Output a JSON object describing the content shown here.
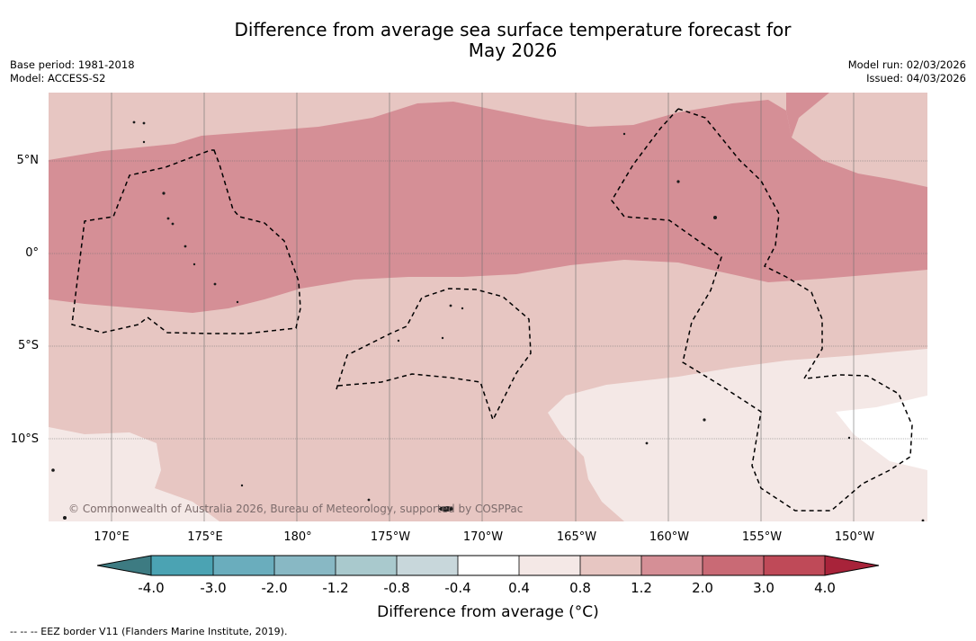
{
  "title": {
    "line1": "Difference from average sea surface temperature forecast for",
    "line2": "May 2026"
  },
  "meta_left": {
    "base_period": "Base period: 1981-2018",
    "model": "Model: ACCESS-S2"
  },
  "meta_right": {
    "model_run": "Model run: 02/03/2026",
    "issued": "Issued: 04/03/2026"
  },
  "axes": {
    "lat_labels": [
      "5°N",
      "0°",
      "5°S",
      "10°S"
    ],
    "lon_labels": [
      "170°E",
      "175°E",
      "180°",
      "175°W",
      "170°W",
      "165°W",
      "160°W",
      "155°W",
      "150°W"
    ]
  },
  "copyright": "© Commonwealth of Australia 2026, Bureau of Meteorology, supported by COSPPac",
  "colorbar": {
    "ticks": [
      "-4.0",
      "-3.0",
      "-2.0",
      "-1.2",
      "-0.8",
      "-0.4",
      "0.4",
      "0.8",
      "1.2",
      "2.0",
      "3.0",
      "4.0"
    ],
    "colors": {
      "below_min": "#3d7b82",
      "b1": "#4ba3b3",
      "b2": "#6aadbd",
      "b3": "#88b8c4",
      "b4": "#a9c9cd",
      "b5": "#c8d7db",
      "b6": "#ffffff",
      "b7": "#f4e8e6",
      "b8": "#e7c6c2",
      "b9": "#d58f96",
      "b10": "#c96a75",
      "b11": "#bf4a58",
      "above_max": "#a8233a"
    },
    "label": "Difference from average (°C)"
  },
  "footnote": "-- -- -- EEZ border V11 (Flanders Marine Institute, 2019)."
}
